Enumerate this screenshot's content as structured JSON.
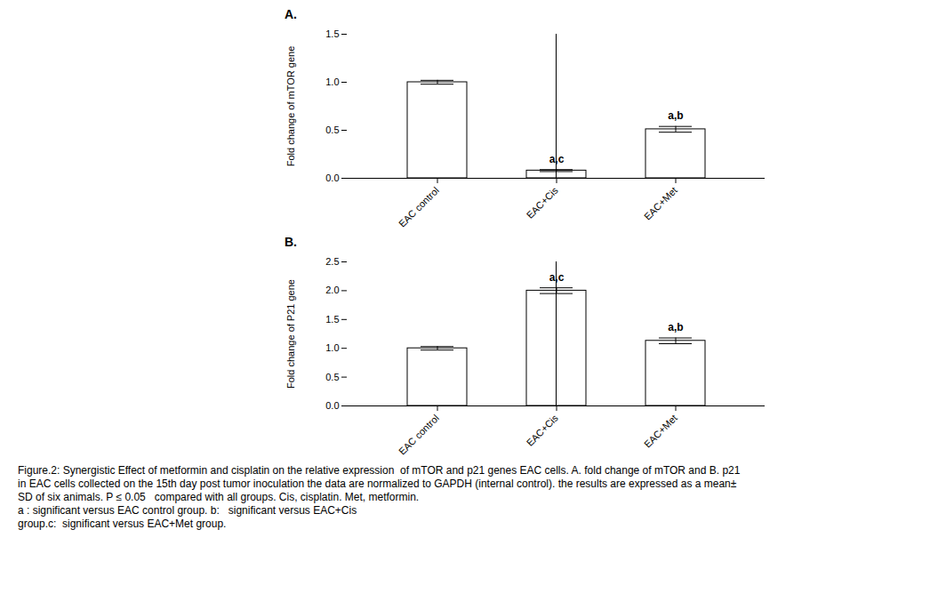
{
  "chart_data": [
    {
      "type": "bar",
      "title": "A.",
      "categories": [
        "EAC control",
        "EAC+Cis",
        "EAC+Met"
      ],
      "values": [
        1.0,
        0.08,
        0.51
      ],
      "errors": [
        0.02,
        0.01,
        0.03
      ],
      "ylabel": "Fold change of mTOR gene",
      "ylim": [
        0,
        1.5
      ],
      "yticks": [
        {
          "value": 0,
          "label": "0.0"
        },
        0.5,
        {
          "value": 1,
          "label": "1.0"
        },
        1.5
      ],
      "annotations": [
        null,
        "a,c",
        "a,b"
      ],
      "color": "#ffffff"
    },
    {
      "type": "bar",
      "title": "B.",
      "categories": [
        "EAC control",
        "EAC+Cis",
        "EAC+Met"
      ],
      "values": [
        1.0,
        2.0,
        1.13
      ],
      "errors": [
        0.03,
        0.05,
        0.05
      ],
      "ylabel": "Fold change of P21 gene",
      "ylim": [
        0,
        2.5
      ],
      "yticks": [
        {
          "value": 0,
          "label": "0.0"
        },
        0.5,
        {
          "value": 1,
          "label": "1.0"
        },
        1.5,
        {
          "value": 2,
          "label": "2.0"
        },
        2.5
      ],
      "annotations": [
        null,
        "a,c",
        "a,b"
      ],
      "color": "#ffffff"
    }
  ],
  "caption": [
    "Figure.2: Synergistic Effect of metformin and cisplatin on the relative expression  of mTOR and p21 genes EAC cells. A. fold change of mTOR and B. p21",
    "in EAC cells collected on the 15th day post tumor inoculation the data are normalized to GAPDH (internal control). the results are expressed as a mean±",
    "SD of six animals. P ≤ 0.05   compared with all groups. Cis, cisplatin. Met, metformin.",
    "a : significant versus EAC control group. b:   significant versus EAC+Cis",
    "group.c:  significant versus EAC+Met group."
  ]
}
